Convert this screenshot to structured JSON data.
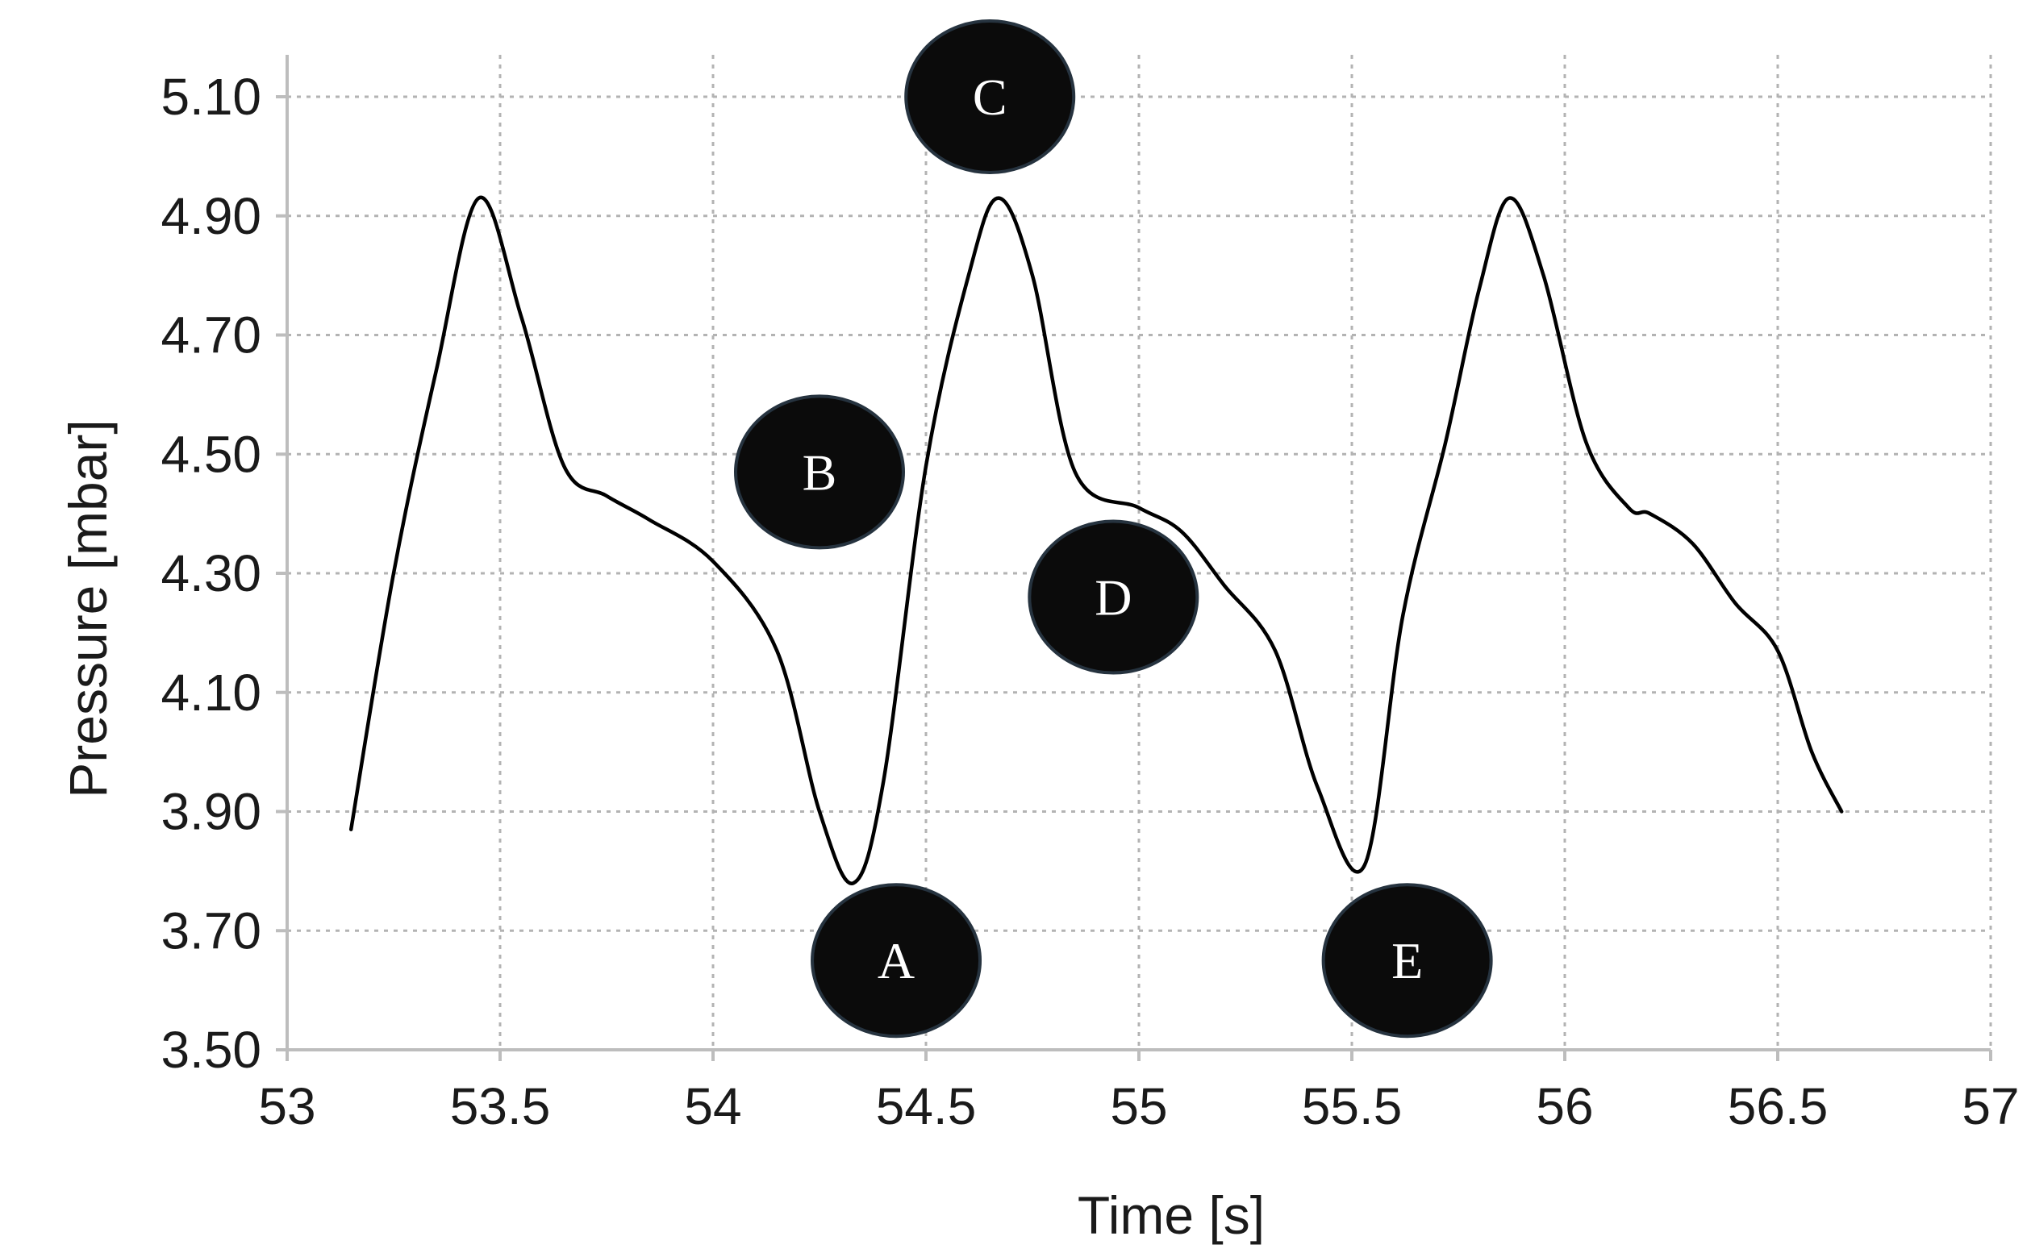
{
  "chart_data": {
    "type": "line",
    "title": "",
    "xlabel": "Time [s]",
    "ylabel": "Pressure [mbar]",
    "xlim": [
      53,
      57
    ],
    "ylim": [
      3.5,
      5.2
    ],
    "grid": true,
    "x_ticks": [
      "53",
      "53.5",
      "54",
      "54.5",
      "55",
      "55.5",
      "56",
      "56.5",
      "57"
    ],
    "y_ticks": [
      "3.50",
      "3.70",
      "3.90",
      "4.10",
      "4.30",
      "4.50",
      "4.70",
      "4.90",
      "5.10"
    ],
    "series": [
      {
        "name": "Pressure",
        "x": [
          53.15,
          53.25,
          53.35,
          53.45,
          53.55,
          53.65,
          53.75,
          53.85,
          54.0,
          54.15,
          54.25,
          54.33,
          54.4,
          54.5,
          54.6,
          54.67,
          54.75,
          54.85,
          55.0,
          55.1,
          55.2,
          55.32,
          55.42,
          55.53,
          55.62,
          55.72,
          55.8,
          55.87,
          55.95,
          56.05,
          56.15,
          56.2,
          56.3,
          56.4,
          56.5,
          56.58,
          56.65
        ],
        "values": [
          3.87,
          4.3,
          4.64,
          4.93,
          4.73,
          4.48,
          4.43,
          4.39,
          4.32,
          4.17,
          3.9,
          3.78,
          3.95,
          4.48,
          4.8,
          4.93,
          4.8,
          4.47,
          4.41,
          4.37,
          4.28,
          4.17,
          3.94,
          3.81,
          4.23,
          4.52,
          4.78,
          4.93,
          4.8,
          4.52,
          4.41,
          4.4,
          4.35,
          4.25,
          4.17,
          4.0,
          3.9
        ]
      }
    ],
    "annotations": [
      {
        "label": "A",
        "x": 54.43,
        "y": 3.65
      },
      {
        "label": "B",
        "x": 54.25,
        "y": 4.47
      },
      {
        "label": "C",
        "x": 54.65,
        "y": 5.1
      },
      {
        "label": "D",
        "x": 54.94,
        "y": 4.26
      },
      {
        "label": "E",
        "x": 55.63,
        "y": 3.65
      }
    ]
  }
}
